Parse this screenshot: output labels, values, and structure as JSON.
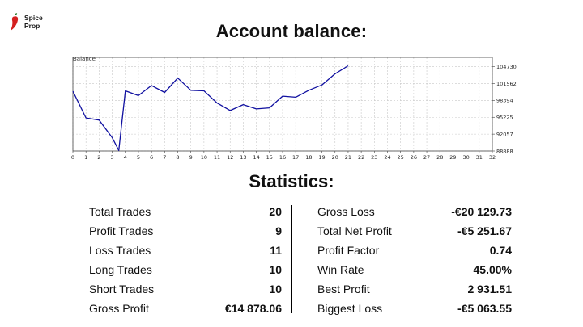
{
  "brand": {
    "name_line1": "Spice",
    "name_line2": "Prop",
    "accent": "#d42020"
  },
  "heading": "Account balance:",
  "chart_data": {
    "type": "line",
    "title": "Balance",
    "x": [
      0,
      1,
      2,
      3,
      3.5,
      4,
      5,
      6,
      7,
      8,
      9,
      10,
      11,
      12,
      13,
      14,
      15,
      16,
      17,
      18,
      19,
      20,
      21
    ],
    "values": [
      100130,
      95100,
      94700,
      91400,
      89000,
      100200,
      99300,
      101200,
      99900,
      102600,
      100300,
      100200,
      97900,
      96500,
      97600,
      96800,
      97000,
      99200,
      99000,
      100300,
      101300,
      103400,
      104900
    ],
    "x_ticks": [
      0,
      1,
      2,
      3,
      4,
      5,
      6,
      7,
      8,
      9,
      10,
      11,
      12,
      13,
      14,
      15,
      16,
      17,
      18,
      19,
      20,
      21,
      22,
      23,
      24,
      25,
      26,
      27,
      28,
      29,
      30,
      31,
      32
    ],
    "y_ticks": [
      88888,
      92057,
      95225,
      98394,
      101562,
      104730
    ],
    "xlim": [
      0,
      32
    ],
    "ylim": [
      88888,
      106500
    ],
    "grid": true,
    "line_color": "#1010a0",
    "grid_color": "#c8c8c8"
  },
  "stats_heading": "Statistics:",
  "stats_left": [
    {
      "label": "Total Trades",
      "value": "20"
    },
    {
      "label": "Profit Trades",
      "value": "9"
    },
    {
      "label": "Loss Trades",
      "value": "11"
    },
    {
      "label": "Long Trades",
      "value": "10"
    },
    {
      "label": "Short Trades",
      "value": "10"
    },
    {
      "label": "Gross Profit",
      "value": "€14 878.06"
    }
  ],
  "stats_right": [
    {
      "label": "Gross Loss",
      "value": "-€20 129.73"
    },
    {
      "label": "Total Net Profit",
      "value": "-€5 251.67"
    },
    {
      "label": "Profit Factor",
      "value": "0.74"
    },
    {
      "label": "Win Rate",
      "value": "45.00%"
    },
    {
      "label": "Best Profit",
      "value": "2 931.51"
    },
    {
      "label": "Biggest Loss",
      "value": "-€5 063.55"
    }
  ]
}
